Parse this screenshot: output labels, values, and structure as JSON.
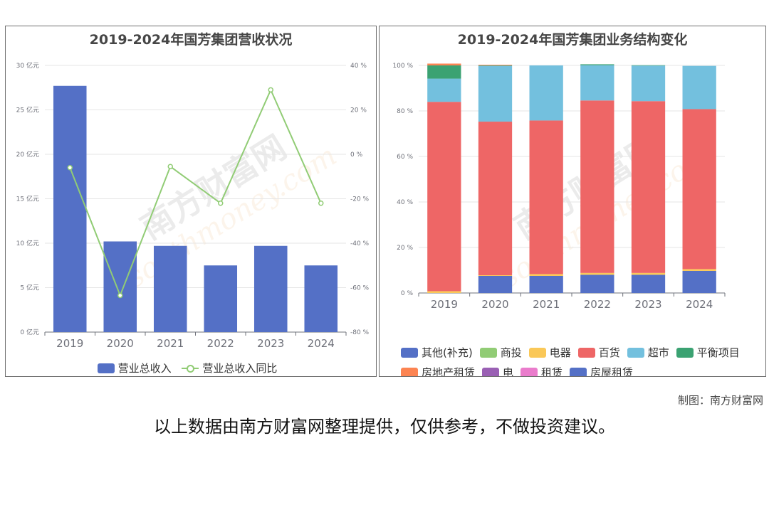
{
  "chart_data": [
    {
      "type": "bar",
      "title": "2019-2024年国芳集团营收状况",
      "categories": [
        "2019",
        "2020",
        "2021",
        "2022",
        "2023",
        "2024"
      ],
      "series": [
        {
          "name": "营业总收入",
          "type": "bar",
          "axis": "left",
          "values": [
            27.7,
            10.2,
            9.7,
            7.5,
            9.7,
            7.5
          ]
        },
        {
          "name": "营业总收入同比",
          "type": "line",
          "axis": "right",
          "values": [
            -6,
            -63.5,
            -5.5,
            -22,
            29,
            -22
          ]
        }
      ],
      "y_left": {
        "ticks": [
          "0 亿元",
          "5 亿元",
          "10 亿元",
          "15 亿元",
          "20 亿元",
          "25 亿元",
          "30 亿元"
        ],
        "ylim": [
          0,
          30
        ]
      },
      "y_right": {
        "ticks": [
          "-80 %",
          "-60 %",
          "-40 %",
          "-20 %",
          "0 %",
          "20 %",
          "40 %"
        ],
        "ylim": [
          -80,
          40
        ]
      },
      "grid": true,
      "legend_position": "bottom",
      "colors": {
        "bar": "#5470c6",
        "line": "#91cc75"
      }
    },
    {
      "type": "bar",
      "stacked": true,
      "title": "2019-2024年国芳集团业务结构变化",
      "categories": [
        "2019",
        "2020",
        "2021",
        "2022",
        "2023",
        "2024"
      ],
      "y_ticks": [
        "0 %",
        "20 %",
        "40 %",
        "60 %",
        "80 %",
        "100 %"
      ],
      "ylim": [
        0,
        100
      ],
      "grid": true,
      "legend_position": "bottom",
      "series": [
        {
          "name": "其他(补充)",
          "color": "#5470c6",
          "values": [
            0,
            0,
            0,
            0,
            0,
            0
          ]
        },
        {
          "name": "商投",
          "color": "#91cc75",
          "values": [
            0,
            0,
            0,
            0,
            0,
            0
          ]
        },
        {
          "name": "电器",
          "color": "#fac858",
          "values": [
            0.8,
            0.3,
            0.8,
            0.8,
            0.8,
            0.8
          ]
        },
        {
          "name": "百货",
          "color": "#ee6666",
          "values": [
            83.2,
            67.5,
            67.5,
            75.8,
            75.5,
            70.3
          ]
        },
        {
          "name": "超市",
          "color": "#73c0de",
          "values": [
            10.2,
            24.5,
            24.2,
            15.5,
            15.6,
            19
          ]
        },
        {
          "name": "平衡项目",
          "color": "#3ba272",
          "values": [
            5.8,
            0.2,
            0,
            0.4,
            0.2,
            0
          ]
        },
        {
          "name": "房地产租赁",
          "color": "#fc8452",
          "values": [
            0.8,
            0.3,
            0,
            0,
            0,
            0
          ]
        },
        {
          "name": "电",
          "color": "#9a60b4",
          "values": [
            0,
            0,
            0,
            0,
            0,
            0
          ]
        },
        {
          "name": "租赁",
          "color": "#ea7ccc",
          "values": [
            0,
            0,
            0,
            0,
            0,
            0
          ]
        },
        {
          "name": "房屋租赁",
          "color": "#5470c6",
          "values": [
            0,
            7.5,
            7.5,
            8,
            8,
            9.7
          ]
        }
      ]
    }
  ],
  "footer": {
    "credit": "制图：南方财富网",
    "disclaimer": "以上数据由南方财富网整理提供，仅供参考，不做投资建议。"
  },
  "watermark": {
    "brand_cn": "南方财富网",
    "brand_en": "southmoney.com"
  }
}
